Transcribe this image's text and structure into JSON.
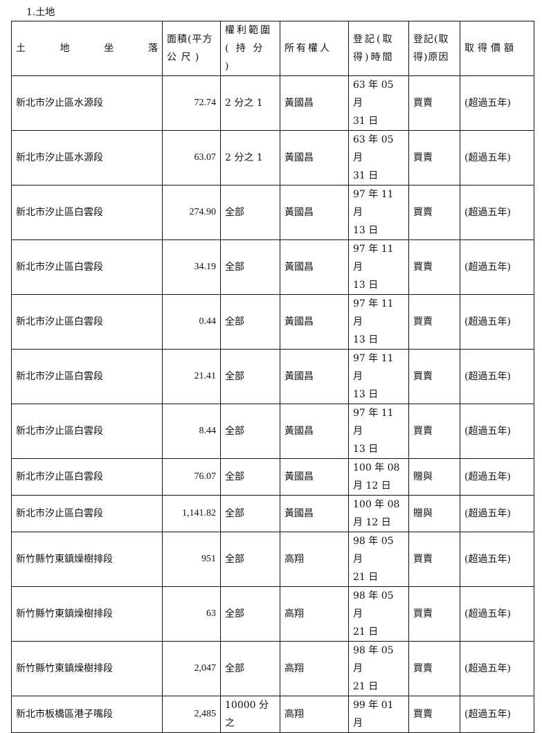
{
  "heading": "1.土地",
  "headers": {
    "location": [
      "土",
      "地",
      "坐",
      "落"
    ],
    "area": [
      "面積(平方",
      "公 尺 )"
    ],
    "scope": [
      "權利範圍",
      "( 持 分 )"
    ],
    "owner": "所有權人",
    "date": [
      "登記(取",
      "得)時間"
    ],
    "reason": [
      "登記(取",
      "得)原因"
    ],
    "price": "取得價額"
  },
  "rows": [
    {
      "location": "新北市汐止區水源段",
      "area": "72.74",
      "scope": "2 分之 1",
      "owner": "黃國昌",
      "date": [
        "63 年 05 月",
        "31 日"
      ],
      "reason": "買賣",
      "price": "(超過五年)"
    },
    {
      "location": "新北市汐止區水源段",
      "area": "63.07",
      "scope": "2 分之 1",
      "owner": "黃國昌",
      "date": [
        "63 年 05 月",
        "31 日"
      ],
      "reason": "買賣",
      "price": "(超過五年)"
    },
    {
      "location": "新北市汐止區白雲段",
      "area": "274.90",
      "scope": "全部",
      "owner": "黃國昌",
      "date": [
        "97 年 11 月",
        "13 日"
      ],
      "reason": "買賣",
      "price": "(超過五年)"
    },
    {
      "location": "新北市汐止區白雲段",
      "area": "34.19",
      "scope": "全部",
      "owner": "黃國昌",
      "date": [
        "97 年 11 月",
        "13 日"
      ],
      "reason": "買賣",
      "price": "(超過五年)"
    },
    {
      "location": "新北市汐止區白雲段",
      "area": "0.44",
      "scope": "全部",
      "owner": "黃國昌",
      "date": [
        "97 年 11 月",
        "13 日"
      ],
      "reason": "買賣",
      "price": "(超過五年)"
    },
    {
      "location": "新北市汐止區白雲段",
      "area": "21.41",
      "scope": "全部",
      "owner": "黃國昌",
      "date": [
        "97 年 11 月",
        "13 日"
      ],
      "reason": "買賣",
      "price": "(超過五年)"
    },
    {
      "location": "新北市汐止區白雲段",
      "area": "8.44",
      "scope": "全部",
      "owner": "黃國昌",
      "date": [
        "97 年 11 月",
        "13 日"
      ],
      "reason": "買賣",
      "price": "(超過五年)"
    },
    {
      "location": "新北市汐止區白雲段",
      "area": "76.07",
      "scope": "全部",
      "owner": "黃國昌",
      "date": [
        "100 年 08",
        "月 12 日"
      ],
      "reason": "贈與",
      "price": "(超過五年)"
    },
    {
      "location": "新北市汐止區白雲段",
      "area": "1,141.82",
      "scope": "全部",
      "owner": "黃國昌",
      "date": [
        "100 年 08",
        "月 12 日"
      ],
      "reason": "贈與",
      "price": "(超過五年)"
    },
    {
      "location": "新竹縣竹東鎮燥樹排段",
      "area": "951",
      "scope": "全部",
      "owner": "高翔",
      "date": [
        "98 年 05 月",
        "21 日"
      ],
      "reason": "買賣",
      "price": "(超過五年)"
    },
    {
      "location": "新竹縣竹東鎮燥樹排段",
      "area": "63",
      "scope": "全部",
      "owner": "高翔",
      "date": [
        "98 年 05 月",
        "21 日"
      ],
      "reason": "買賣",
      "price": "(超過五年)"
    },
    {
      "location": "新竹縣竹東鎮燥樹排段",
      "area": "2,047",
      "scope": "全部",
      "owner": "高翔",
      "date": [
        "98 年 05 月",
        "21 日"
      ],
      "reason": "買賣",
      "price": "(超過五年)"
    },
    {
      "location": "新北市板橋區港子嘴段",
      "area": "2,485",
      "scope": "10000 分之",
      "owner": "高翔",
      "date": [
        "99 年 01 月",
        ""
      ],
      "reason": "買賣",
      "price": "(超過五年)"
    }
  ]
}
